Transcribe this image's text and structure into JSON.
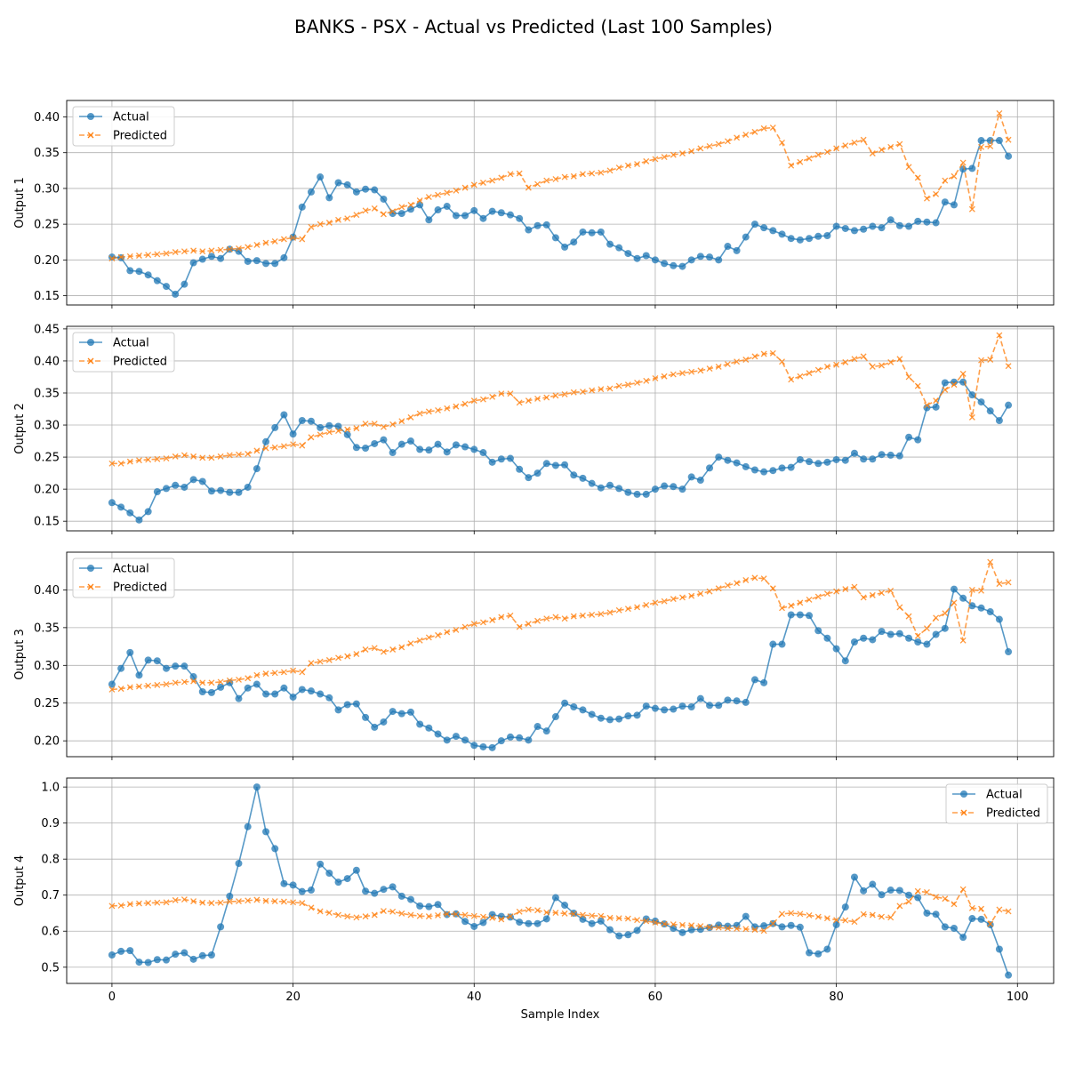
{
  "figure": {
    "title": "BANKS - PSX - Actual vs Predicted (Last 100 Samples)",
    "xlabel": "Sample Index"
  },
  "colors": {
    "actual": "#1f77b4",
    "predicted": "#ff7f0e",
    "grid": "#b0b0b0"
  },
  "chart_data": [
    {
      "type": "line",
      "ylabel": "Output 1",
      "xlim": [
        -5,
        104
      ],
      "ylim": [
        0.137,
        0.423
      ],
      "yticks": [
        0.15,
        0.2,
        0.25,
        0.3,
        0.35,
        0.4
      ],
      "ytick_labels": [
        "0.15",
        "0.20",
        "0.25",
        "0.30",
        "0.35",
        "0.40"
      ],
      "xticks": [
        0,
        20,
        40,
        60,
        80,
        100
      ],
      "legend_placement": "upper left",
      "grid": true,
      "series": [
        {
          "name": "Actual",
          "marker": "o",
          "linestyle": "solid",
          "values": [
            0.204,
            0.203,
            0.185,
            0.184,
            0.179,
            0.171,
            0.163,
            0.152,
            0.166,
            0.196,
            0.201,
            0.205,
            0.202,
            0.215,
            0.212,
            0.198,
            0.199,
            0.195,
            0.195,
            0.203,
            0.232,
            0.274,
            0.295,
            0.316,
            0.287,
            0.308,
            0.305,
            0.295,
            0.299,
            0.298,
            0.285,
            0.265,
            0.265,
            0.271,
            0.277,
            0.256,
            0.27,
            0.275,
            0.262,
            0.262,
            0.269,
            0.258,
            0.268,
            0.266,
            0.263,
            0.258,
            0.242,
            0.248,
            0.249,
            0.231,
            0.218,
            0.225,
            0.239,
            0.238,
            0.239,
            0.222,
            0.217,
            0.209,
            0.202,
            0.206,
            0.2,
            0.195,
            0.192,
            0.191,
            0.2,
            0.205,
            0.204,
            0.2,
            0.219,
            0.213,
            0.232,
            0.25,
            0.245,
            0.241,
            0.236,
            0.23,
            0.228,
            0.23,
            0.233,
            0.234,
            0.247,
            0.244,
            0.241,
            0.243,
            0.247,
            0.245,
            0.256,
            0.248,
            0.247,
            0.254,
            0.253,
            0.252,
            0.281,
            0.277,
            0.327,
            0.328,
            0.367,
            0.367,
            0.367,
            0.345
          ]
        },
        {
          "name": "Predicted",
          "marker": "x",
          "linestyle": "dashed",
          "values": [
            0.202,
            0.204,
            0.205,
            0.206,
            0.207,
            0.208,
            0.209,
            0.211,
            0.212,
            0.213,
            0.212,
            0.213,
            0.214,
            0.215,
            0.216,
            0.218,
            0.221,
            0.224,
            0.226,
            0.229,
            0.231,
            0.229,
            0.246,
            0.25,
            0.252,
            0.256,
            0.258,
            0.263,
            0.269,
            0.272,
            0.264,
            0.268,
            0.274,
            0.277,
            0.283,
            0.288,
            0.291,
            0.294,
            0.297,
            0.301,
            0.305,
            0.308,
            0.311,
            0.315,
            0.32,
            0.321,
            0.301,
            0.306,
            0.311,
            0.313,
            0.316,
            0.317,
            0.32,
            0.321,
            0.322,
            0.325,
            0.329,
            0.332,
            0.334,
            0.338,
            0.341,
            0.344,
            0.347,
            0.349,
            0.352,
            0.356,
            0.359,
            0.362,
            0.366,
            0.371,
            0.375,
            0.379,
            0.384,
            0.385,
            0.364,
            0.332,
            0.337,
            0.342,
            0.347,
            0.351,
            0.356,
            0.36,
            0.364,
            0.368,
            0.349,
            0.354,
            0.358,
            0.362,
            0.33,
            0.315,
            0.286,
            0.292,
            0.311,
            0.317,
            0.336,
            0.271,
            0.358,
            0.359,
            0.405,
            0.368
          ]
        }
      ]
    },
    {
      "type": "line",
      "ylabel": "Output 2",
      "xlim": [
        -5,
        104
      ],
      "ylim": [
        0.135,
        0.454
      ],
      "yticks": [
        0.15,
        0.2,
        0.25,
        0.3,
        0.35,
        0.4,
        0.45
      ],
      "ytick_labels": [
        "0.15",
        "0.20",
        "0.25",
        "0.30",
        "0.35",
        "0.40",
        "0.45"
      ],
      "xticks": [
        0,
        20,
        40,
        60,
        80,
        100
      ],
      "legend_placement": "upper left",
      "grid": true,
      "series": [
        {
          "name": "Actual",
          "marker": "o",
          "linestyle": "solid",
          "values": [
            0.179,
            0.172,
            0.163,
            0.152,
            0.165,
            0.196,
            0.201,
            0.206,
            0.203,
            0.215,
            0.212,
            0.197,
            0.198,
            0.195,
            0.195,
            0.203,
            0.232,
            0.274,
            0.296,
            0.316,
            0.286,
            0.307,
            0.306,
            0.296,
            0.299,
            0.298,
            0.285,
            0.265,
            0.264,
            0.271,
            0.277,
            0.257,
            0.27,
            0.275,
            0.262,
            0.261,
            0.27,
            0.258,
            0.269,
            0.266,
            0.262,
            0.257,
            0.242,
            0.247,
            0.248,
            0.231,
            0.218,
            0.225,
            0.24,
            0.237,
            0.238,
            0.222,
            0.217,
            0.209,
            0.202,
            0.206,
            0.201,
            0.195,
            0.192,
            0.192,
            0.2,
            0.205,
            0.204,
            0.2,
            0.219,
            0.214,
            0.233,
            0.25,
            0.245,
            0.241,
            0.235,
            0.23,
            0.227,
            0.229,
            0.233,
            0.234,
            0.246,
            0.243,
            0.24,
            0.242,
            0.246,
            0.245,
            0.256,
            0.247,
            0.247,
            0.254,
            0.253,
            0.252,
            0.281,
            0.277,
            0.327,
            0.328,
            0.366,
            0.367,
            0.367,
            0.347,
            0.336,
            0.322,
            0.307,
            0.331
          ]
        },
        {
          "name": "Predicted",
          "marker": "x",
          "linestyle": "dashed",
          "values": [
            0.24,
            0.24,
            0.243,
            0.245,
            0.246,
            0.247,
            0.248,
            0.251,
            0.253,
            0.251,
            0.249,
            0.249,
            0.251,
            0.253,
            0.254,
            0.255,
            0.26,
            0.264,
            0.265,
            0.267,
            0.27,
            0.268,
            0.281,
            0.285,
            0.289,
            0.291,
            0.293,
            0.295,
            0.302,
            0.302,
            0.297,
            0.301,
            0.306,
            0.312,
            0.318,
            0.321,
            0.323,
            0.326,
            0.329,
            0.333,
            0.338,
            0.34,
            0.344,
            0.349,
            0.349,
            0.335,
            0.338,
            0.341,
            0.343,
            0.346,
            0.348,
            0.351,
            0.352,
            0.354,
            0.356,
            0.357,
            0.361,
            0.363,
            0.366,
            0.369,
            0.373,
            0.376,
            0.379,
            0.381,
            0.383,
            0.385,
            0.388,
            0.391,
            0.395,
            0.399,
            0.402,
            0.407,
            0.411,
            0.412,
            0.399,
            0.371,
            0.376,
            0.381,
            0.386,
            0.391,
            0.394,
            0.398,
            0.403,
            0.407,
            0.391,
            0.393,
            0.398,
            0.403,
            0.375,
            0.361,
            0.331,
            0.338,
            0.355,
            0.363,
            0.38,
            0.312,
            0.401,
            0.402,
            0.44,
            0.392
          ]
        }
      ]
    },
    {
      "type": "line",
      "ylabel": "Output 3",
      "xlim": [
        -5,
        104
      ],
      "ylim": [
        0.179,
        0.45
      ],
      "yticks": [
        0.2,
        0.25,
        0.3,
        0.35,
        0.4
      ],
      "ytick_labels": [
        "0.20",
        "0.25",
        "0.30",
        "0.35",
        "0.40"
      ],
      "xticks": [
        0,
        20,
        40,
        60,
        80,
        100
      ],
      "legend_placement": "upper left",
      "grid": true,
      "series": [
        {
          "name": "Actual",
          "marker": "o",
          "linestyle": "solid",
          "values": [
            0.275,
            0.296,
            0.317,
            0.287,
            0.307,
            0.306,
            0.296,
            0.299,
            0.299,
            0.285,
            0.265,
            0.264,
            0.271,
            0.277,
            0.256,
            0.27,
            0.275,
            0.262,
            0.262,
            0.27,
            0.258,
            0.268,
            0.266,
            0.262,
            0.257,
            0.241,
            0.248,
            0.249,
            0.231,
            0.218,
            0.225,
            0.239,
            0.236,
            0.238,
            0.222,
            0.217,
            0.209,
            0.201,
            0.206,
            0.201,
            0.194,
            0.192,
            0.191,
            0.2,
            0.205,
            0.204,
            0.201,
            0.219,
            0.213,
            0.232,
            0.25,
            0.245,
            0.241,
            0.235,
            0.23,
            0.228,
            0.229,
            0.233,
            0.234,
            0.246,
            0.243,
            0.241,
            0.242,
            0.246,
            0.245,
            0.256,
            0.247,
            0.247,
            0.254,
            0.253,
            0.251,
            0.281,
            0.277,
            0.328,
            0.328,
            0.367,
            0.367,
            0.366,
            0.346,
            0.336,
            0.322,
            0.306,
            0.331,
            0.336,
            0.334,
            0.345,
            0.341,
            0.342,
            0.336,
            0.331,
            0.328,
            0.341,
            0.349,
            0.401,
            0.389,
            0.379,
            0.376,
            0.371,
            0.361,
            0.318
          ]
        },
        {
          "name": "Predicted",
          "marker": "x",
          "linestyle": "dashed",
          "values": [
            0.268,
            0.269,
            0.271,
            0.272,
            0.273,
            0.274,
            0.275,
            0.277,
            0.278,
            0.279,
            0.277,
            0.277,
            0.278,
            0.28,
            0.281,
            0.283,
            0.287,
            0.289,
            0.29,
            0.291,
            0.293,
            0.291,
            0.303,
            0.305,
            0.307,
            0.31,
            0.312,
            0.315,
            0.321,
            0.323,
            0.318,
            0.321,
            0.324,
            0.329,
            0.333,
            0.337,
            0.34,
            0.344,
            0.347,
            0.351,
            0.355,
            0.357,
            0.36,
            0.364,
            0.366,
            0.351,
            0.355,
            0.359,
            0.362,
            0.364,
            0.362,
            0.365,
            0.366,
            0.367,
            0.368,
            0.37,
            0.373,
            0.375,
            0.377,
            0.38,
            0.383,
            0.385,
            0.388,
            0.39,
            0.392,
            0.395,
            0.398,
            0.402,
            0.406,
            0.409,
            0.413,
            0.416,
            0.415,
            0.402,
            0.376,
            0.379,
            0.383,
            0.387,
            0.391,
            0.395,
            0.398,
            0.401,
            0.404,
            0.39,
            0.393,
            0.396,
            0.399,
            0.377,
            0.365,
            0.339,
            0.349,
            0.363,
            0.369,
            0.383,
            0.333,
            0.4,
            0.399,
            0.437,
            0.408,
            0.41
          ]
        }
      ]
    },
    {
      "type": "line",
      "ylabel": "Output 4",
      "xlim": [
        -5,
        104
      ],
      "ylim": [
        0.455,
        1.025
      ],
      "yticks": [
        0.5,
        0.6,
        0.7,
        0.8,
        0.9,
        1.0
      ],
      "ytick_labels": [
        "0.5",
        "0.6",
        "0.7",
        "0.8",
        "0.9",
        "1.0"
      ],
      "xticks": [
        0,
        20,
        40,
        60,
        80,
        100
      ],
      "xtick_labels": [
        "0",
        "20",
        "40",
        "60",
        "80",
        "100"
      ],
      "legend_placement": "upper right",
      "grid": true,
      "series": [
        {
          "name": "Actual",
          "marker": "o",
          "linestyle": "solid",
          "values": [
            0.534,
            0.544,
            0.546,
            0.514,
            0.513,
            0.521,
            0.52,
            0.536,
            0.54,
            0.522,
            0.532,
            0.534,
            0.612,
            0.697,
            0.788,
            0.89,
            1.0,
            0.876,
            0.829,
            0.732,
            0.728,
            0.71,
            0.714,
            0.786,
            0.761,
            0.736,
            0.746,
            0.769,
            0.711,
            0.705,
            0.716,
            0.723,
            0.697,
            0.688,
            0.67,
            0.668,
            0.674,
            0.646,
            0.648,
            0.627,
            0.613,
            0.624,
            0.646,
            0.641,
            0.639,
            0.625,
            0.621,
            0.621,
            0.634,
            0.693,
            0.672,
            0.65,
            0.633,
            0.621,
            0.628,
            0.604,
            0.587,
            0.59,
            0.602,
            0.634,
            0.628,
            0.62,
            0.608,
            0.596,
            0.604,
            0.605,
            0.61,
            0.617,
            0.614,
            0.616,
            0.641,
            0.612,
            0.615,
            0.621,
            0.612,
            0.616,
            0.611,
            0.54,
            0.537,
            0.55,
            0.618,
            0.667,
            0.75,
            0.712,
            0.73,
            0.701,
            0.714,
            0.713,
            0.7,
            0.693,
            0.65,
            0.647,
            0.612,
            0.608,
            0.583,
            0.635,
            0.633,
            0.618,
            0.55,
            0.478
          ]
        },
        {
          "name": "Predicted",
          "marker": "x",
          "linestyle": "dashed",
          "values": [
            0.67,
            0.671,
            0.675,
            0.677,
            0.678,
            0.679,
            0.68,
            0.686,
            0.688,
            0.683,
            0.679,
            0.678,
            0.679,
            0.682,
            0.683,
            0.685,
            0.687,
            0.684,
            0.683,
            0.682,
            0.68,
            0.678,
            0.665,
            0.655,
            0.651,
            0.645,
            0.641,
            0.638,
            0.641,
            0.645,
            0.656,
            0.654,
            0.649,
            0.645,
            0.642,
            0.641,
            0.644,
            0.648,
            0.647,
            0.645,
            0.642,
            0.64,
            0.637,
            0.633,
            0.641,
            0.654,
            0.66,
            0.658,
            0.652,
            0.651,
            0.649,
            0.648,
            0.645,
            0.643,
            0.642,
            0.637,
            0.636,
            0.635,
            0.631,
            0.628,
            0.624,
            0.62,
            0.619,
            0.617,
            0.616,
            0.614,
            0.611,
            0.61,
            0.608,
            0.607,
            0.606,
            0.604,
            0.601,
            0.621,
            0.648,
            0.65,
            0.648,
            0.644,
            0.64,
            0.636,
            0.631,
            0.63,
            0.626,
            0.647,
            0.645,
            0.64,
            0.638,
            0.67,
            0.682,
            0.711,
            0.708,
            0.695,
            0.69,
            0.675,
            0.716,
            0.664,
            0.662,
            0.62,
            0.66,
            0.655
          ]
        }
      ]
    }
  ]
}
